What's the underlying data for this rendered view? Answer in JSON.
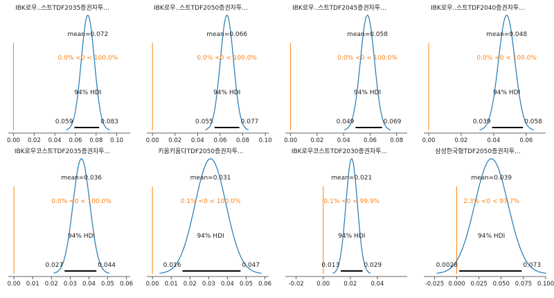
{
  "colors": {
    "curve": "#1f77b4",
    "ref_line": "#ff7f0e",
    "hdi_bar": "#000000",
    "axis": "#333333"
  },
  "chart_data": [
    {
      "type": "density",
      "title": "IBK로우..스트TDF2035증권자투...",
      "mean_label": "mean=0.072",
      "ref_label": "0.0% <0 < 100.0%",
      "hdi_label": "94% HDI",
      "hdi_low_label": "0.059",
      "hdi_high_label": "0.083",
      "mean": 0.072,
      "hdi": [
        0.059,
        0.083
      ],
      "ref_value": 0.0,
      "xlim": [
        -0.005,
        0.113
      ],
      "xticks": [
        0.0,
        0.02,
        0.04,
        0.06,
        0.08,
        0.1
      ],
      "xtick_labels": [
        "0.00",
        "0.02",
        "0.04",
        "0.06",
        "0.08",
        "0.10"
      ]
    },
    {
      "type": "density",
      "title": "IBK로우..스트TDF2050증권자투...",
      "mean_label": "mean=0.066",
      "ref_label": "0.0% <0 < 100.0%",
      "hdi_label": "94% HDI",
      "hdi_low_label": "0.055",
      "hdi_high_label": "0.077",
      "mean": 0.066,
      "hdi": [
        0.055,
        0.077
      ],
      "ref_value": 0.0,
      "xlim": [
        -0.005,
        0.103
      ],
      "xticks": [
        0.0,
        0.02,
        0.04,
        0.06,
        0.08,
        0.1
      ],
      "xtick_labels": [
        "0.00",
        "0.02",
        "0.04",
        "0.06",
        "0.08",
        "0.10"
      ]
    },
    {
      "type": "density",
      "title": "IBK로우..스트TDF2045증권자투...",
      "mean_label": "mean=0.058",
      "ref_label": "0.0% <0 < 100.0%",
      "hdi_label": "94% HDI",
      "hdi_low_label": "0.049",
      "hdi_high_label": "0.069",
      "mean": 0.058,
      "hdi": [
        0.049,
        0.069
      ],
      "ref_value": 0.0,
      "xlim": [
        -0.004,
        0.088
      ],
      "xticks": [
        0.0,
        0.02,
        0.04,
        0.06,
        0.08
      ],
      "xtick_labels": [
        "0.00",
        "0.02",
        "0.04",
        "0.06",
        "0.08"
      ]
    },
    {
      "type": "density",
      "title": "IBK로우..스트TDF2040증권자투...",
      "mean_label": "mean=0.048",
      "ref_label": "0.0% <0 < 100.0%",
      "hdi_label": "94% HDI",
      "hdi_low_label": "0.039",
      "hdi_high_label": "0.058",
      "mean": 0.048,
      "hdi": [
        0.039,
        0.058
      ],
      "ref_value": 0.0,
      "xlim": [
        -0.003,
        0.072
      ],
      "xticks": [
        0.0,
        0.02,
        0.04,
        0.06
      ],
      "xtick_labels": [
        "0.00",
        "0.02",
        "0.04",
        "0.06"
      ]
    },
    {
      "type": "density",
      "title": "IBK로우코스트TDF2035증권자투...",
      "mean_label": "mean=0.036",
      "ref_label": "0.0% <0 < 100.0%",
      "hdi_label": "94% HDI",
      "hdi_low_label": "0.027",
      "hdi_high_label": "0.044",
      "mean": 0.036,
      "hdi": [
        0.027,
        0.044
      ],
      "ref_value": 0.0,
      "xlim": [
        -0.003,
        0.062
      ],
      "xticks": [
        0.0,
        0.01,
        0.02,
        0.03,
        0.04,
        0.05,
        0.06
      ],
      "xtick_labels": [
        "0.00",
        "0.01",
        "0.02",
        "0.03",
        "0.04",
        "0.05",
        "0.06"
      ]
    },
    {
      "type": "density",
      "title": "키움키움다TDF2050증권자투...",
      "mean_label": "mean=0.031",
      "ref_label": "0.1% <0 < 100.0%",
      "hdi_label": "94% HDI",
      "hdi_low_label": "0.016",
      "hdi_high_label": "0.047",
      "mean": 0.031,
      "hdi": [
        0.016,
        0.047
      ],
      "ref_value": 0.0,
      "xlim": [
        -0.003,
        0.062
      ],
      "xticks": [
        0.0,
        0.01,
        0.02,
        0.03,
        0.04,
        0.05,
        0.06
      ],
      "xtick_labels": [
        "0.00",
        "0.01",
        "0.02",
        "0.03",
        "0.04",
        "0.05",
        "0.06"
      ]
    },
    {
      "type": "density",
      "title": "IBK로우코스트TDF2030증권자투...",
      "mean_label": "mean=0.021",
      "ref_label": "0.1% <0 < 99.9%",
      "hdi_label": "94% HDI",
      "hdi_low_label": "0.013",
      "hdi_high_label": "0.029",
      "mean": 0.021,
      "hdi": [
        0.013,
        0.029
      ],
      "ref_value": 0.0,
      "xlim": [
        -0.028,
        0.062
      ],
      "xticks": [
        -0.02,
        0.0,
        0.02,
        0.04
      ],
      "xtick_labels": [
        "-0.02",
        "0.00",
        "0.02",
        "0.04"
      ]
    },
    {
      "type": "density",
      "title": "삼성한국형TDF2050증권자투...",
      "mean_label": "mean=0.039",
      "ref_label": "2.3% <0 < 97.7%",
      "hdi_label": "94% HDI",
      "hdi_low_label": "0.0028",
      "hdi_high_label": "0.073",
      "mean": 0.039,
      "hdi": [
        0.0028,
        0.073
      ],
      "ref_value": 0.0,
      "xlim": [
        -0.037,
        0.1
      ],
      "xticks": [
        -0.025,
        0.0,
        0.025,
        0.05,
        0.075,
        0.1
      ],
      "xtick_labels": [
        "-0.025",
        "0.000",
        "0.025",
        "0.050",
        "0.075",
        "0.100"
      ]
    }
  ]
}
